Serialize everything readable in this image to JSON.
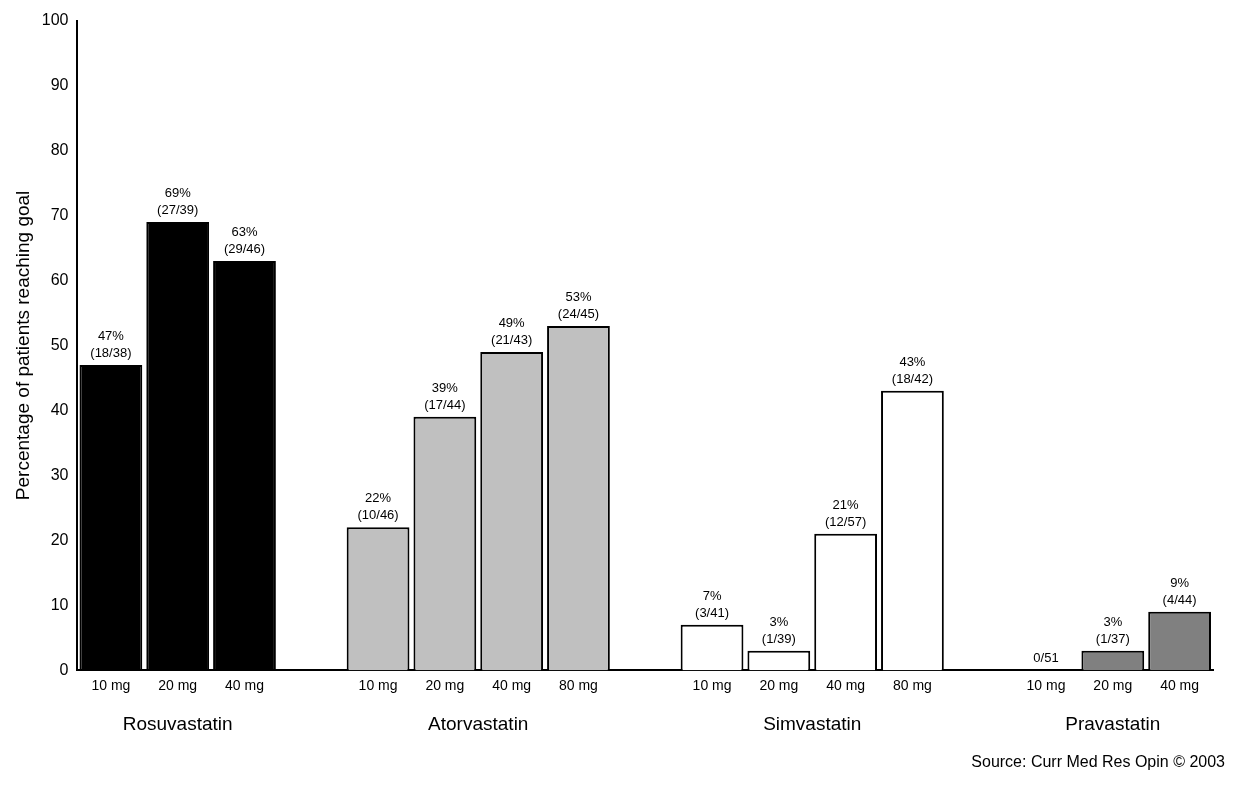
{
  "chart_data": {
    "type": "bar",
    "ylabel": "Percentage of patients reaching goal",
    "categories": [
      "10 mg",
      "20 mg",
      "40 mg",
      null,
      "10 mg",
      "20 mg",
      "40 mg",
      "80 mg",
      null,
      "10 mg",
      "20 mg",
      "40 mg",
      "80 mg",
      null,
      "10 mg",
      "20 mg",
      "40 mg"
    ],
    "series": [
      {
        "name": "Rosuvastatin",
        "color": "#000000",
        "values": [
          47,
          69,
          63,
          null,
          null,
          null,
          null,
          null,
          null,
          null,
          null,
          null,
          null,
          null,
          null,
          null,
          null
        ],
        "value_labels": [
          "47% (18/38)",
          "69% (27/39)",
          "63% (29/46)",
          null,
          null,
          null,
          null,
          null,
          null,
          null,
          null,
          null,
          null,
          null,
          null,
          null,
          null
        ]
      },
      {
        "name": "Atorvastatin",
        "color": "#c0c0c0",
        "values": [
          null,
          null,
          null,
          null,
          22,
          39,
          49,
          53,
          null,
          null,
          null,
          null,
          null,
          null,
          null,
          null,
          null
        ],
        "value_labels": [
          null,
          null,
          null,
          null,
          "22% (10/46)",
          "39% (17/44)",
          "49% (21/43)",
          "53% (24/45)",
          null,
          null,
          null,
          null,
          null,
          null,
          null,
          null,
          null
        ]
      },
      {
        "name": "Simvastatin",
        "color": "#ffffff",
        "values": [
          null,
          null,
          null,
          null,
          null,
          null,
          null,
          null,
          null,
          7,
          3,
          21,
          43,
          null,
          null,
          null,
          null
        ],
        "value_labels": [
          null,
          null,
          null,
          null,
          null,
          null,
          null,
          null,
          null,
          "7% (3/41)",
          "3% (1/39)",
          "21% (12/57)",
          "43% (18/42)",
          null,
          null,
          null,
          null
        ]
      },
      {
        "name": "Pravastatin",
        "color": "#808080",
        "values": [
          null,
          null,
          null,
          null,
          null,
          null,
          null,
          null,
          null,
          null,
          null,
          null,
          null,
          null,
          0,
          3,
          9
        ],
        "value_labels": [
          null,
          null,
          null,
          null,
          null,
          null,
          null,
          null,
          null,
          null,
          null,
          null,
          null,
          null,
          "0/51",
          "3% (1/37)",
          "9% (4/44)"
        ]
      }
    ],
    "ylim": [
      0,
      100
    ],
    "yticks": [
      0,
      10,
      20,
      30,
      40,
      50,
      60,
      70,
      80,
      90,
      100
    ],
    "grid": false,
    "legend": false,
    "annotations": [
      "Source: Curr Med Res Opin © 2003"
    ]
  }
}
